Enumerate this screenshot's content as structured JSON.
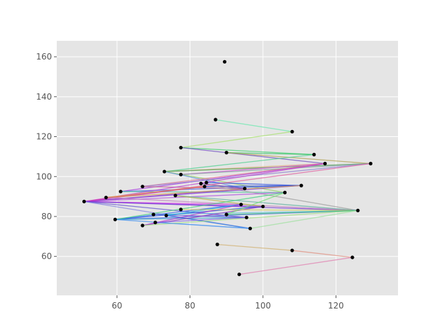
{
  "chart_data": {
    "type": "scatter",
    "title": "",
    "xlabel": "",
    "ylabel": "",
    "xlim": [
      43.5,
      137
    ],
    "ylim": [
      40.5,
      168
    ],
    "xticks": [
      60,
      80,
      100,
      120
    ],
    "yticks": [
      60,
      80,
      100,
      120,
      140,
      160
    ],
    "grid": true,
    "background": "#e5e5e5",
    "grid_color": "#ffffff",
    "point_color": "#000000",
    "points": [
      {
        "x": 89.5,
        "y": 157.5
      },
      {
        "x": 87.0,
        "y": 128.5
      },
      {
        "x": 108.0,
        "y": 122.5
      },
      {
        "x": 77.5,
        "y": 114.5
      },
      {
        "x": 90.0,
        "y": 112.0
      },
      {
        "x": 114.0,
        "y": 111.0
      },
      {
        "x": 117.0,
        "y": 106.5
      },
      {
        "x": 129.5,
        "y": 106.5
      },
      {
        "x": 73.0,
        "y": 102.5
      },
      {
        "x": 77.5,
        "y": 101.0
      },
      {
        "x": 61.0,
        "y": 92.5
      },
      {
        "x": 67.0,
        "y": 95.0
      },
      {
        "x": 83.0,
        "y": 96.5
      },
      {
        "x": 84.5,
        "y": 97.0
      },
      {
        "x": 84.0,
        "y": 95.0
      },
      {
        "x": 95.0,
        "y": 94.0
      },
      {
        "x": 110.5,
        "y": 95.5
      },
      {
        "x": 106.0,
        "y": 92.0
      },
      {
        "x": 76.0,
        "y": 90.5
      },
      {
        "x": 57.0,
        "y": 89.5
      },
      {
        "x": 51.0,
        "y": 87.5
      },
      {
        "x": 94.0,
        "y": 86.0
      },
      {
        "x": 100.0,
        "y": 85.0
      },
      {
        "x": 126.0,
        "y": 83.0
      },
      {
        "x": 77.5,
        "y": 83.5
      },
      {
        "x": 70.0,
        "y": 81.0
      },
      {
        "x": 73.5,
        "y": 80.5
      },
      {
        "x": 90.0,
        "y": 81.0
      },
      {
        "x": 95.5,
        "y": 79.5
      },
      {
        "x": 59.5,
        "y": 78.5
      },
      {
        "x": 70.5,
        "y": 77.0
      },
      {
        "x": 67.0,
        "y": 75.5
      },
      {
        "x": 96.5,
        "y": 74.0
      },
      {
        "x": 87.5,
        "y": 66.0
      },
      {
        "x": 108.0,
        "y": 63.0
      },
      {
        "x": 124.5,
        "y": 59.5
      },
      {
        "x": 93.5,
        "y": 51.0
      }
    ],
    "segments": [
      {
        "from": [
          87.0,
          128.5
        ],
        "to": [
          108.0,
          122.5
        ],
        "color": "#6ee8b0"
      },
      {
        "from": [
          77.5,
          114.5
        ],
        "to": [
          108.0,
          122.5
        ],
        "color": "#a8e070"
      },
      {
        "from": [
          77.5,
          114.5
        ],
        "to": [
          114.0,
          111.0
        ],
        "color": "#40d070"
      },
      {
        "from": [
          77.5,
          114.5
        ],
        "to": [
          117.0,
          106.5
        ],
        "color": "#7050c0"
      },
      {
        "from": [
          90.0,
          112.0
        ],
        "to": [
          114.0,
          111.0
        ],
        "color": "#30c060"
      },
      {
        "from": [
          90.0,
          112.0
        ],
        "to": [
          129.5,
          106.5
        ],
        "color": "#b0a050"
      },
      {
        "from": [
          73.0,
          102.5
        ],
        "to": [
          114.0,
          111.0
        ],
        "color": "#50d090"
      },
      {
        "from": [
          73.0,
          102.5
        ],
        "to": [
          117.0,
          106.5
        ],
        "color": "#e0b080"
      },
      {
        "from": [
          73.0,
          102.5
        ],
        "to": [
          129.5,
          106.5
        ],
        "color": "#50a050"
      },
      {
        "from": [
          73.0,
          102.5
        ],
        "to": [
          106.0,
          92.0
        ],
        "color": "#90d060"
      },
      {
        "from": [
          73.0,
          102.5
        ],
        "to": [
          95.0,
          94.0
        ],
        "color": "#6090e0"
      },
      {
        "from": [
          77.5,
          101.0
        ],
        "to": [
          117.0,
          106.5
        ],
        "color": "#d050d0"
      },
      {
        "from": [
          77.5,
          101.0
        ],
        "to": [
          129.5,
          106.5
        ],
        "color": "#80a0a0"
      },
      {
        "from": [
          61.0,
          92.5
        ],
        "to": [
          117.0,
          106.5
        ],
        "color": "#a030e0"
      },
      {
        "from": [
          61.0,
          92.5
        ],
        "to": [
          110.5,
          95.5
        ],
        "color": "#4060e0"
      },
      {
        "from": [
          61.0,
          92.5
        ],
        "to": [
          106.0,
          92.0
        ],
        "color": "#50c0a0"
      },
      {
        "from": [
          67.0,
          95.0
        ],
        "to": [
          117.0,
          106.5
        ],
        "color": "#e07090"
      },
      {
        "from": [
          67.0,
          95.0
        ],
        "to": [
          129.5,
          106.5
        ],
        "color": "#9080d0"
      },
      {
        "from": [
          67.0,
          95.0
        ],
        "to": [
          95.0,
          94.0
        ],
        "color": "#c06090"
      },
      {
        "from": [
          84.5,
          97.0
        ],
        "to": [
          110.5,
          95.5
        ],
        "color": "#3050e0"
      },
      {
        "from": [
          84.0,
          95.0
        ],
        "to": [
          110.5,
          95.5
        ],
        "color": "#2040d0"
      },
      {
        "from": [
          83.0,
          96.5
        ],
        "to": [
          126.0,
          83.0
        ],
        "color": "#a0a0a0"
      },
      {
        "from": [
          83.0,
          96.5
        ],
        "to": [
          95.0,
          94.0
        ],
        "color": "#7040b0"
      },
      {
        "from": [
          51.0,
          87.5
        ],
        "to": [
          117.0,
          106.5
        ],
        "color": "#c040d0"
      },
      {
        "from": [
          51.0,
          87.5
        ],
        "to": [
          129.5,
          106.5
        ],
        "color": "#e060a0"
      },
      {
        "from": [
          51.0,
          87.5
        ],
        "to": [
          110.5,
          95.5
        ],
        "color": "#8030e0"
      },
      {
        "from": [
          51.0,
          87.5
        ],
        "to": [
          106.0,
          92.0
        ],
        "color": "#b050e0"
      },
      {
        "from": [
          51.0,
          87.5
        ],
        "to": [
          95.0,
          94.0
        ],
        "color": "#9040c0"
      },
      {
        "from": [
          51.0,
          87.5
        ],
        "to": [
          84.0,
          95.0
        ],
        "color": "#d030c0"
      },
      {
        "from": [
          51.0,
          87.5
        ],
        "to": [
          94.0,
          86.0
        ],
        "color": "#e040e0"
      },
      {
        "from": [
          51.0,
          87.5
        ],
        "to": [
          100.0,
          85.0
        ],
        "color": "#a040f0"
      },
      {
        "from": [
          51.0,
          87.5
        ],
        "to": [
          126.0,
          83.0
        ],
        "color": "#7030d0"
      },
      {
        "from": [
          51.0,
          87.5
        ],
        "to": [
          95.5,
          79.5
        ],
        "color": "#6050d0"
      },
      {
        "from": [
          51.0,
          87.5
        ],
        "to": [
          96.5,
          74.0
        ],
        "color": "#8080e0"
      },
      {
        "from": [
          57.0,
          89.5
        ],
        "to": [
          110.5,
          95.5
        ],
        "color": "#d0a050"
      },
      {
        "from": [
          57.0,
          89.5
        ],
        "to": [
          126.0,
          83.0
        ],
        "color": "#c080c0"
      },
      {
        "from": [
          57.0,
          89.5
        ],
        "to": [
          84.0,
          95.0
        ],
        "color": "#e08040"
      },
      {
        "from": [
          76.0,
          90.5
        ],
        "to": [
          126.0,
          83.0
        ],
        "color": "#60b0a0"
      },
      {
        "from": [
          76.0,
          90.5
        ],
        "to": [
          100.0,
          85.0
        ],
        "color": "#b0b040"
      },
      {
        "from": [
          59.5,
          78.5
        ],
        "to": [
          94.0,
          86.0
        ],
        "color": "#3060f0"
      },
      {
        "from": [
          59.5,
          78.5
        ],
        "to": [
          100.0,
          85.0
        ],
        "color": "#2050e0"
      },
      {
        "from": [
          59.5,
          78.5
        ],
        "to": [
          126.0,
          83.0
        ],
        "color": "#5070e0"
      },
      {
        "from": [
          59.5,
          78.5
        ],
        "to": [
          106.0,
          92.0
        ],
        "color": "#40d080"
      },
      {
        "from": [
          59.5,
          78.5
        ],
        "to": [
          95.5,
          79.5
        ],
        "color": "#30a0d0"
      },
      {
        "from": [
          59.5,
          78.5
        ],
        "to": [
          96.5,
          74.0
        ],
        "color": "#4090f0"
      },
      {
        "from": [
          70.0,
          81.0
        ],
        "to": [
          126.0,
          83.0
        ],
        "color": "#60c0e0"
      },
      {
        "from": [
          70.0,
          81.0
        ],
        "to": [
          95.5,
          79.5
        ],
        "color": "#5050d0"
      },
      {
        "from": [
          73.5,
          80.5
        ],
        "to": [
          96.5,
          74.0
        ],
        "color": "#3080e0"
      },
      {
        "from": [
          73.5,
          80.5
        ],
        "to": [
          94.0,
          86.0
        ],
        "color": "#20b0e0"
      },
      {
        "from": [
          67.0,
          75.5
        ],
        "to": [
          94.0,
          86.0
        ],
        "color": "#b030d0"
      },
      {
        "from": [
          67.0,
          75.5
        ],
        "to": [
          100.0,
          85.0
        ],
        "color": "#9030c0"
      },
      {
        "from": [
          67.0,
          75.5
        ],
        "to": [
          126.0,
          83.0
        ],
        "color": "#a0e080"
      },
      {
        "from": [
          70.5,
          77.0
        ],
        "to": [
          96.5,
          74.0
        ],
        "color": "#60a0f0"
      },
      {
        "from": [
          70.5,
          77.0
        ],
        "to": [
          95.5,
          79.5
        ],
        "color": "#8060e0"
      },
      {
        "from": [
          77.5,
          83.5
        ],
        "to": [
          126.0,
          83.0
        ],
        "color": "#d0d060"
      },
      {
        "from": [
          90.0,
          81.0
        ],
        "to": [
          126.0,
          83.0
        ],
        "color": "#40c080"
      },
      {
        "from": [
          90.0,
          81.0
        ],
        "to": [
          106.0,
          92.0
        ],
        "color": "#70e070"
      },
      {
        "from": [
          96.5,
          74.0
        ],
        "to": [
          126.0,
          83.0
        ],
        "color": "#a0e0a0"
      },
      {
        "from": [
          87.5,
          66.0
        ],
        "to": [
          108.0,
          63.0
        ],
        "color": "#d0b070"
      },
      {
        "from": [
          108.0,
          63.0
        ],
        "to": [
          124.5,
          59.5
        ],
        "color": "#e09080"
      },
      {
        "from": [
          93.5,
          51.0
        ],
        "to": [
          124.5,
          59.5
        ],
        "color": "#e080b0"
      }
    ]
  }
}
